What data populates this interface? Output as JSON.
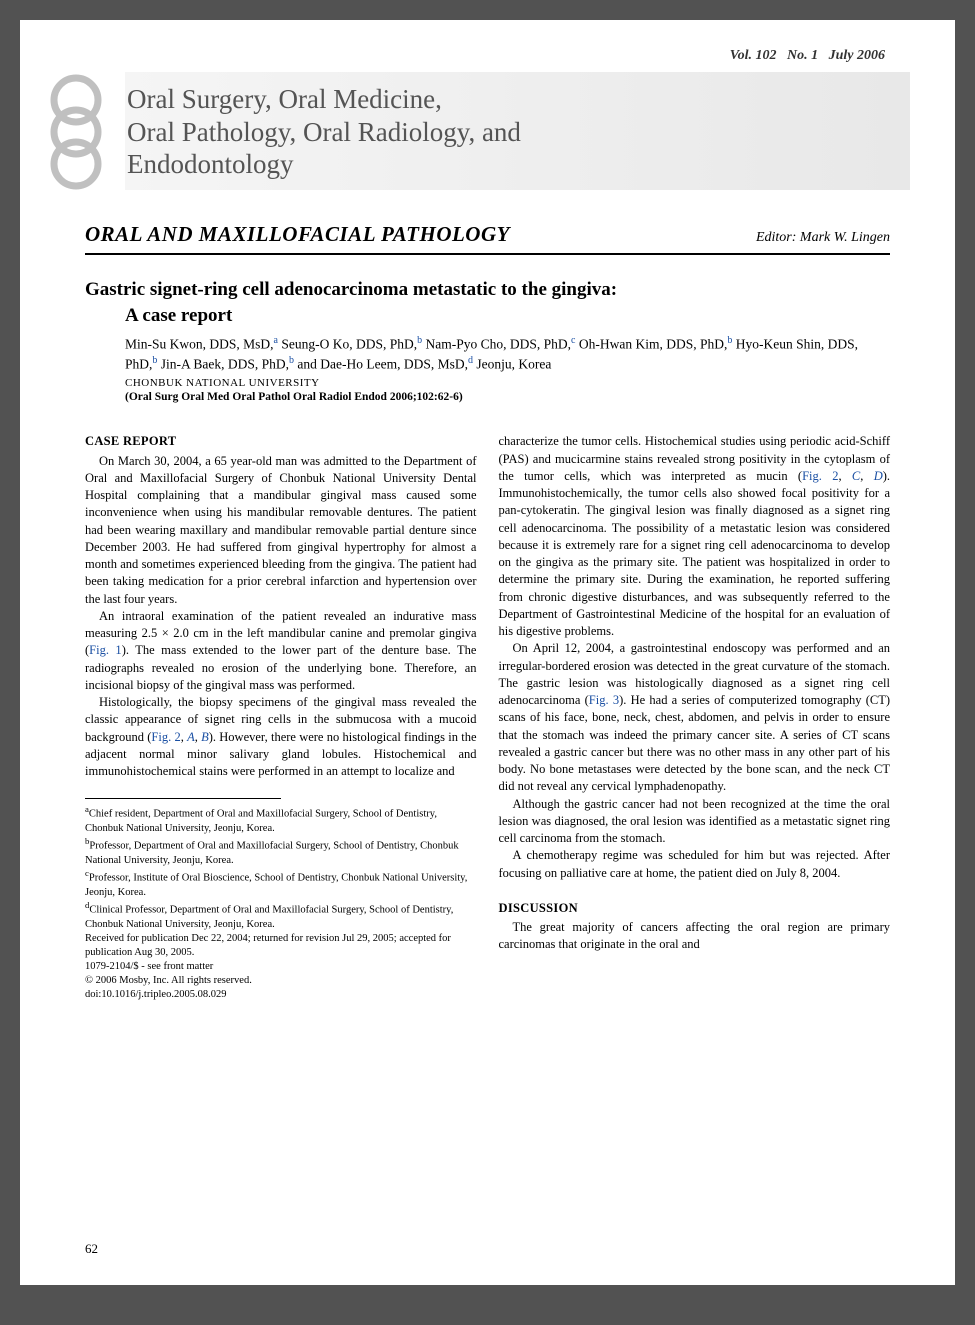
{
  "header": {
    "volume": "Vol. 102",
    "issue": "No. 1",
    "date": "July 2006"
  },
  "journal": {
    "title_line1": "Oral Surgery, Oral Medicine,",
    "title_line2": "Oral Pathology, Oral Radiology, and",
    "title_line3": "Endodontology",
    "ring_stroke": "#c0c0c0",
    "ring_fill": "#f0f0f0"
  },
  "section": {
    "title": "ORAL AND MAXILLOFACIAL PATHOLOGY",
    "editor_label": "Editor:",
    "editor_name": "Mark W. Lingen"
  },
  "article": {
    "title": "Gastric signet-ring cell adenocarcinoma metastatic to the gingiva:",
    "subtitle": "A case report",
    "authors_html": "Min-Su Kwon, DDS, MsD,|a| Seung-O Ko, DDS, PhD,|b| Nam-Pyo Cho, DDS, PhD,|c| Oh-Hwan Kim, DDS, PhD,|b| Hyo-Keun Shin, DDS, PhD,|b| Jin-A Baek, DDS, PhD,|b| and Dae-Ho Leem, DDS, MsD,|d| Jeonju, Korea",
    "affiliation": "CHONBUK NATIONAL UNIVERSITY",
    "citation": "(Oral Surg Oral Med Oral Pathol Oral Radiol Endod 2006;102:62-6)"
  },
  "body": {
    "case_report_heading": "CASE REPORT",
    "p1": "On March 30, 2004, a 65 year-old man was admitted to the Department of Oral and Maxillofacial Surgery of Chonbuk National University Dental Hospital complaining that a mandibular gingival mass caused some inconvenience when using his mandibular removable dentures. The patient had been wearing maxillary and mandibular removable partial denture since December 2003. He had suffered from gingival hypertrophy for almost a month and sometimes experienced bleeding from the gingiva. The patient had been taking medication for a prior cerebral infarction and hypertension over the last four years.",
    "p2_a": "An intraoral examination of the patient revealed an indurative mass measuring 2.5 × 2.0 cm in the left mandibular canine and premolar gingiva (",
    "p2_fig1": "Fig. 1",
    "p2_b": "). The mass extended to the lower part of the denture base. The radiographs revealed no erosion of the underlying bone. Therefore, an incisional biopsy of the gingival mass was performed.",
    "p3_a": "Histologically, the biopsy specimens of the gingival mass revealed the classic appearance of signet ring cells in the submucosa with a mucoid background (",
    "p3_fig2": "Fig. 2",
    "p3_b": ", ",
    "p3_A": "A",
    "p3_c": ", ",
    "p3_B": "B",
    "p3_d": "). However, there were no histological findings in the adjacent normal minor salivary gland lobules. Histochemical and immunohistochemical stains were performed in an attempt to localize and",
    "p4_a": "characterize the tumor cells. Histochemical studies using periodic acid-Schiff (PAS) and mucicarmine stains revealed strong positivity in the cytoplasm of the tumor cells, which was interpreted as mucin (",
    "p4_fig2": "Fig. 2",
    "p4_b": ", ",
    "p4_C": "C",
    "p4_c": ", ",
    "p4_D": "D",
    "p4_d": "). Immunohistochemically, the tumor cells also showed focal positivity for a pan-cytokeratin. The gingival lesion was finally diagnosed as a signet ring cell adenocarcinoma. The possibility of a metastatic lesion was considered because it is extremely rare for a signet ring cell adenocarcinoma to develop on the gingiva as the primary site. The patient was hospitalized in order to determine the primary site. During the examination, he reported suffering from chronic digestive disturbances, and was subsequently referred to the Department of Gastrointestinal Medicine of the hospital for an evaluation of his digestive problems.",
    "p5_a": "On April 12, 2004, a gastrointestinal endoscopy was performed and an irregular-bordered erosion was detected in the great curvature of the stomach. The gastric lesion was histologically diagnosed as a signet ring cell adenocarcinoma (",
    "p5_fig3": "Fig. 3",
    "p5_b": "). He had a series of computerized tomography (CT) scans of his face, bone, neck, chest, abdomen, and pelvis in order to ensure that the stomach was indeed the primary cancer site. A series of CT scans revealed a gastric cancer but there was no other mass in any other part of his body. No bone metastases were detected by the bone scan, and the neck CT did not reveal any cervical lymphadenopathy.",
    "p6": "Although the gastric cancer had not been recognized at the time the oral lesion was diagnosed, the oral lesion was identified as a metastatic signet ring cell carcinoma from the stomach.",
    "p7": "A chemotherapy regime was scheduled for him but was rejected. After focusing on palliative care at home, the patient died on July 8, 2004.",
    "discussion_heading": "DISCUSSION",
    "p8": "The great majority of cancers affecting the oral region are primary carcinomas that originate in the oral and"
  },
  "footnotes": {
    "a": "Chief resident, Department of Oral and Maxillofacial Surgery, School of Dentistry, Chonbuk National University, Jeonju, Korea.",
    "b": "Professor, Department of Oral and Maxillofacial Surgery, School of Dentistry, Chonbuk National University, Jeonju, Korea.",
    "c": "Professor, Institute of Oral Bioscience, School of Dentistry, Chonbuk National University, Jeonju, Korea.",
    "d": "Clinical Professor, Department of Oral and Maxillofacial Surgery, School of Dentistry, Chonbuk National University, Jeonju, Korea.",
    "received": "Received for publication Dec 22, 2004; returned for revision Jul 29, 2005; accepted for publication Aug 30, 2005.",
    "issn": "1079-2104/$ - see front matter",
    "copyright": "© 2006 Mosby, Inc. All rights reserved.",
    "doi": "doi:10.1016/j.tripleo.2005.08.029"
  },
  "pagenum": "62",
  "colors": {
    "link": "#1a4fa3",
    "banner_text": "#545454"
  }
}
